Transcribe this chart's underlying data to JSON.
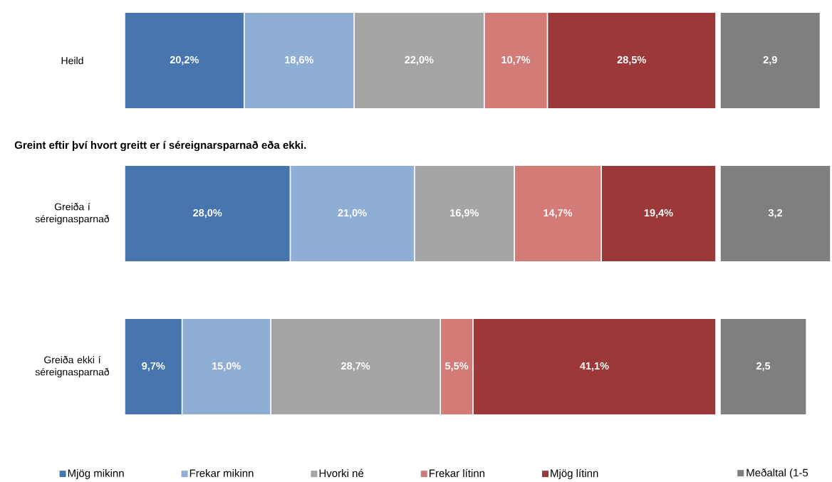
{
  "chart_data": [
    {
      "type": "bar",
      "orientation": "horizontal",
      "stacked": true,
      "subtitle": "Greint eftir því hvort greitt er í séreignarsparnað eða ekki.",
      "categories": [
        "Heild",
        "Greiða í séreignasparnað",
        "Greiða ekki í séreignasparnað"
      ],
      "tick_labels": "y",
      "legend": "bottom",
      "series": [
        {
          "name": "Mjög mikinn",
          "color": "#4675b0",
          "values": [
            20.2,
            28.0,
            9.7
          ],
          "value_labels": [
            "20,2%",
            "28,0%",
            "9,7%"
          ]
        },
        {
          "name": "Frekar mikinn",
          "color": "#8eaed5",
          "values": [
            18.6,
            21.0,
            15.0
          ],
          "value_labels": [
            "18,6%",
            "21,0%",
            "15,0%"
          ]
        },
        {
          "name": "Hvorki né",
          "color": "#a5a5a5",
          "values": [
            22.0,
            16.9,
            28.7
          ],
          "value_labels": [
            "22,0%",
            "16,9%",
            "28,7%"
          ]
        },
        {
          "name": "Frekar lítinn",
          "color": "#d27b77",
          "values": [
            10.7,
            14.7,
            5.5
          ],
          "value_labels": [
            "10,7%",
            "14,7%",
            "5,5%"
          ]
        },
        {
          "name": "Mjög lítinn",
          "color": "#9c3839",
          "values": [
            28.5,
            19.4,
            41.1
          ],
          "value_labels": [
            "28,5%",
            "19,4%",
            "41,1%"
          ]
        }
      ]
    },
    {
      "type": "bar",
      "orientation": "horizontal",
      "categories": [
        null,
        null,
        null
      ],
      "tick_labels": false,
      "legend": "bottom",
      "series": [
        {
          "name": "Meðaltal (1-5",
          "color": "#7f7f7f",
          "values": [
            2.9,
            3.2,
            2.5
          ],
          "value_labels": [
            "2,9",
            "3,2",
            "2,5"
          ]
        }
      ]
    }
  ]
}
